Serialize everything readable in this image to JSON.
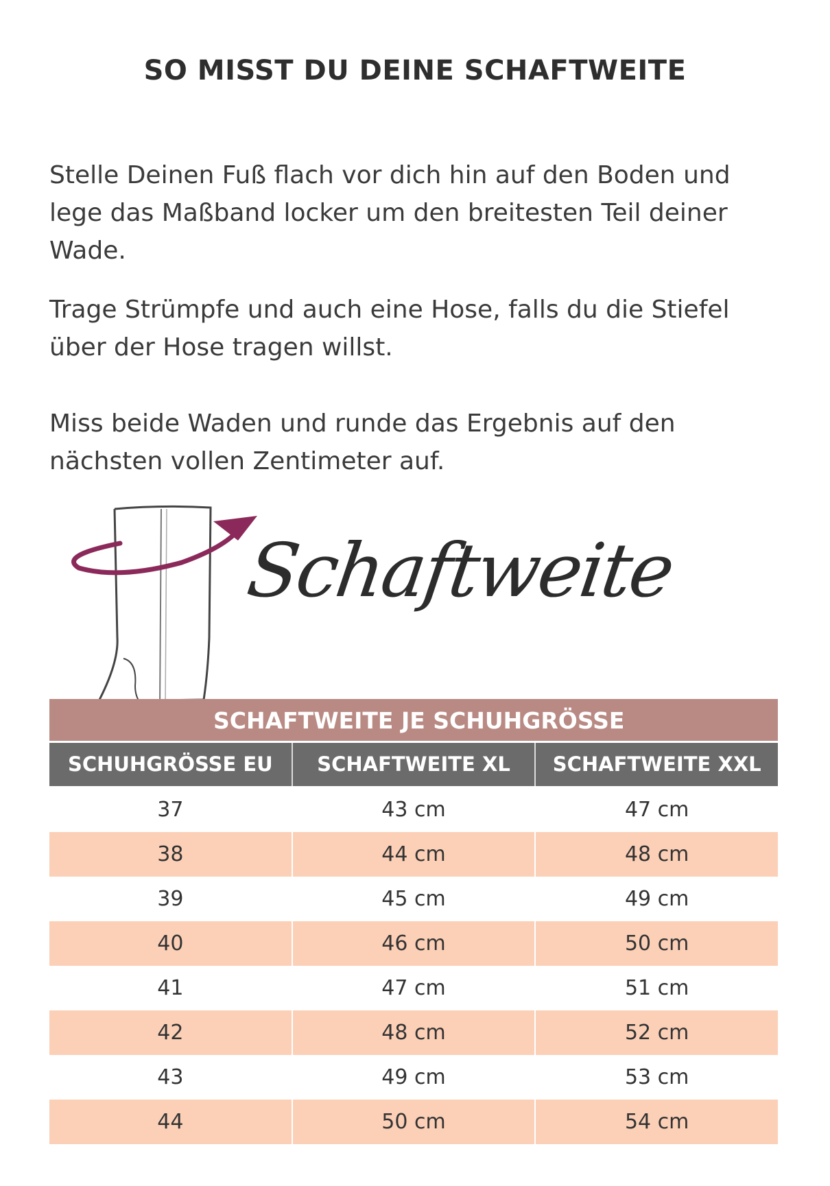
{
  "title": "SO MISST DU DEINE SCHAFTWEITE",
  "paragraphs": [
    "Stelle Deinen Fuß flach vor dich hin auf den Boden und lege das Maßband locker um den breitesten Teil deiner Wade.",
    "Trage Strümpfe und auch eine Hose, falls du die Stiefel über der Hose tragen willst.",
    "Miss beide Waden und runde das Ergebnis auf den nächsten vollen Zentimeter auf."
  ],
  "illustration": {
    "lettering": "Schaftweite",
    "icon": "boot-with-measuring-arrow",
    "arrow_color": "#8b2a5a"
  },
  "table": {
    "caption": "SCHAFTWEITE JE SCHUHGRÖSSE",
    "headers": [
      "SCHUHGRÖSSE EU",
      "SCHAFTWEITE XL",
      "SCHAFTWEITE XXL"
    ],
    "rows": [
      [
        "37",
        "43 cm",
        "47 cm"
      ],
      [
        "38",
        "44 cm",
        "48 cm"
      ],
      [
        "39",
        "45 cm",
        "49 cm"
      ],
      [
        "40",
        "46 cm",
        "50 cm"
      ],
      [
        "41",
        "47 cm",
        "51 cm"
      ],
      [
        "42",
        "48 cm",
        "52 cm"
      ],
      [
        "43",
        "49 cm",
        "53 cm"
      ],
      [
        "44",
        "50 cm",
        "54 cm"
      ]
    ],
    "colors": {
      "caption": "#b98a84",
      "header": "#6b6b6b",
      "alt_row": "#fcd0b7"
    }
  }
}
